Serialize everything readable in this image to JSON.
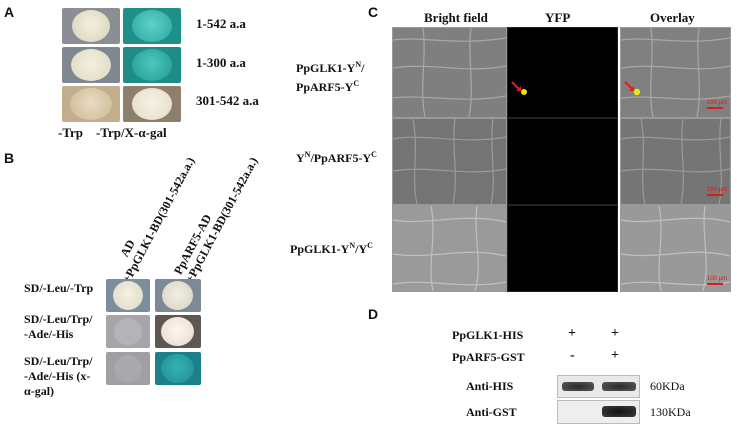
{
  "panels": {
    "a": "A",
    "b": "B",
    "c": "C",
    "d": "D"
  },
  "panel_a": {
    "rows": [
      "1-542 a.a",
      "1-300 a.a",
      "301-542 a.a"
    ],
    "columns": [
      "-Trp",
      "-Trp/X-α-gal"
    ]
  },
  "panel_b": {
    "col1_line1": "AD",
    "col1_line2": "+PpGLK1-BD(301-542a.a.)",
    "col2_line1": "PpARF5-AD",
    "col2_line2": "+PpGLK1-BD(301-542a.a.)",
    "row1": "SD/-Leu/-Trp",
    "row2_line1": "SD/-Leu/Trp/",
    "row2_line2": "-Ade/-His",
    "row3_line1": "SD/-Leu/Trp/",
    "row3_line2": "-Ade/-His (x-",
    "row3_line3": "α-gal)"
  },
  "panel_c": {
    "col_bright": "Bright field",
    "col_yfp": "YFP",
    "col_overlay": "Overlay",
    "row1_line1": "PpGLK1-Y",
    "row1_sup1": "N",
    "row1_mid": "/",
    "row1_line2": "PpARF5-Y",
    "row1_sup2": "C",
    "row2_a": "Y",
    "row2_sup1": "N",
    "row2_b": "/PpARF5-Y",
    "row2_sup2": "C",
    "row3_a": "PpGLK1-Y",
    "row3_sup1": "N",
    "row3_b": "/Y",
    "row3_sup2": "C",
    "scale": "100 μm"
  },
  "panel_d": {
    "row1_label": "PpGLK1-HIS",
    "row1_v1": "+",
    "row1_v2": "+",
    "row2_label": "PpARF5-GST",
    "row2_v1": "-",
    "row2_v2": "+",
    "blot1_label": "Anti-HIS",
    "blot1_size": "60KDa",
    "blot2_label": "Anti-GST",
    "blot2_size": "130KDa"
  }
}
